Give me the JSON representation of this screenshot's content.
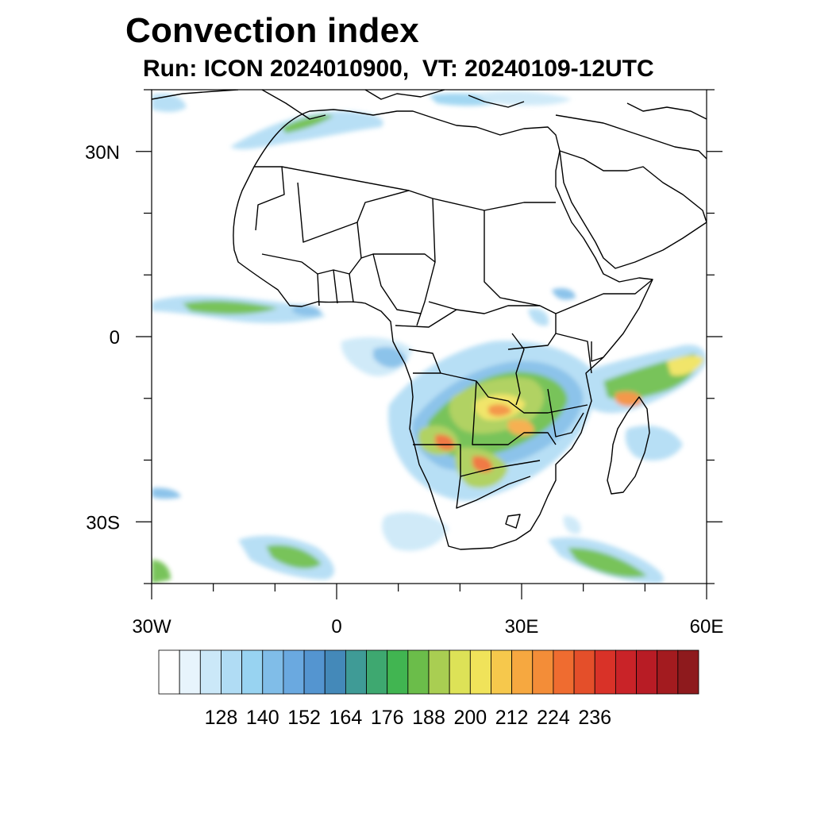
{
  "title": "Convection index",
  "subtitle": "Run: ICON 2024010900,  VT: 20240109-12UTC",
  "map": {
    "projection": "lat-lon",
    "extent": {
      "lon_min": -30,
      "lon_max": 60,
      "lat_min": -40,
      "lat_max": 40
    },
    "lat_ticks": [
      {
        "value": 30,
        "label": "30N"
      },
      {
        "value": 0,
        "label": "0"
      },
      {
        "value": -30,
        "label": "30S"
      }
    ],
    "lon_ticks": [
      {
        "value": -30,
        "label": "30W"
      },
      {
        "value": 0,
        "label": "0"
      },
      {
        "value": 30,
        "label": "30E"
      },
      {
        "value": 60,
        "label": "60E"
      }
    ]
  },
  "colorbar": {
    "colors": [
      "#ffffff",
      "#e7f4fc",
      "#cbe8f8",
      "#b0dcf4",
      "#98d3f1",
      "#80bde8",
      "#6aa9e0",
      "#5495d0",
      "#4489b9",
      "#3f9b96",
      "#3ea870",
      "#41b551",
      "#6bbd4a",
      "#a9ce52",
      "#dde257",
      "#f0e35a",
      "#f6c84c",
      "#f6a840",
      "#f38d38",
      "#ef6c30",
      "#e44f2a",
      "#d93228",
      "#c92328",
      "#b81c25",
      "#a31b1f",
      "#8e1a1d"
    ],
    "labels": [
      "128",
      "140",
      "152",
      "164",
      "176",
      "188",
      "200",
      "212",
      "224",
      "236"
    ]
  }
}
